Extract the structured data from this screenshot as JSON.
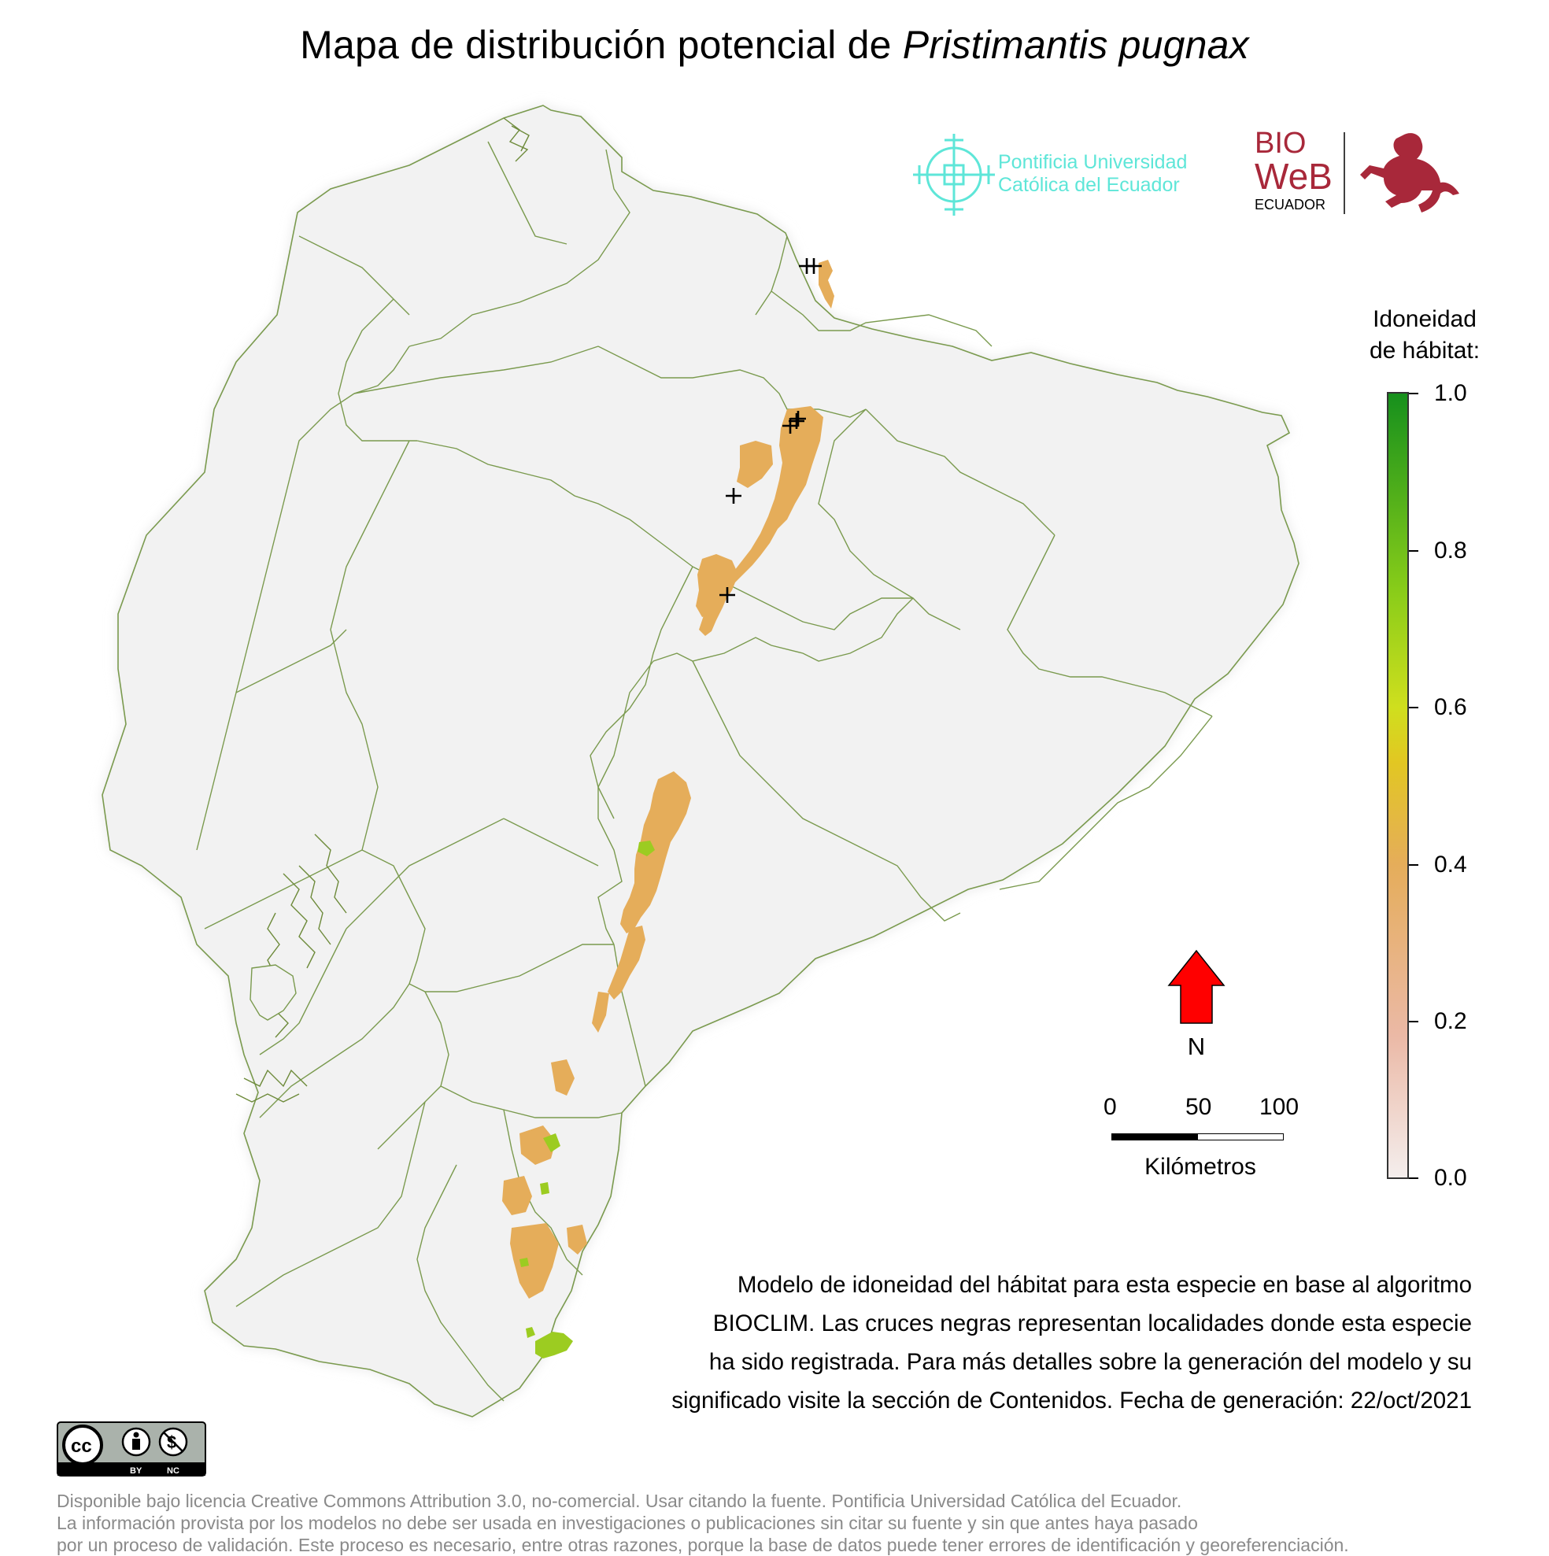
{
  "title": {
    "prefix": "Mapa de distribución potencial de ",
    "species": "Pristimantis pugnax"
  },
  "logos": {
    "puce_line1": "Pontificia Universidad",
    "puce_line2": "Católica del Ecuador",
    "bioweb_top": "BIO",
    "bioweb_mid": "WeB",
    "bioweb_bottom": "ECUADOR",
    "cc_by": "BY",
    "cc_nc": "NC"
  },
  "legend": {
    "title_line1": "Idoneidad",
    "title_line2": "de hábitat:",
    "ticks": [
      "1.0",
      "0.8",
      "0.6",
      "0.4",
      "0.2",
      "0.0"
    ],
    "scale_min": 0.0,
    "scale_max": 1.0,
    "colors": {
      "low": "#f4eeed",
      "mid_low": "#ebb9a6",
      "mid": "#e5ad5a",
      "yellow": "#e2c722",
      "high": "#88cc19",
      "max": "#16901c"
    }
  },
  "north_arrow": {
    "label": "N",
    "color": "#ff0000"
  },
  "scale_bar": {
    "labels": [
      "0",
      "50",
      "100"
    ],
    "unit": "Kilómetros"
  },
  "description": [
    "Modelo de idoneidad del hábitat para esta especie en base al algoritmo",
    "BIOCLIM. Las cruces negras representan localidades donde esta especie",
    "ha sido registrada. Para más detalles sobre la generación del modelo y su",
    "significado visite la sección de Contenidos. Fecha de generación: 22/oct/2021"
  ],
  "footer": [
    "Disponible bajo licencia Creative Commons Attribution 3.0, no-comercial. Usar citando la fuente. Pontificia Universidad Católica del Ecuador.",
    "La información provista por los modelos no debe ser usada en investigaciones o publicaciones sin citar su fuente y sin que antes haya pasado",
    "por un proceso de validación. Este proceso es necesario, entre otras razones, porque la base de datos puede tener errores de identificación y georeferenciación."
  ],
  "map": {
    "background_color": "#f2f2f2",
    "border_color": "#7a9a4e",
    "occurrence_count": 7,
    "suitability_zones": [
      {
        "region": "north",
        "suitability": 0.35
      },
      {
        "region": "central",
        "suitability": 0.38
      },
      {
        "region": "south",
        "suitability": 0.36
      },
      {
        "region": "far-south",
        "suitability": 0.68
      }
    ]
  }
}
